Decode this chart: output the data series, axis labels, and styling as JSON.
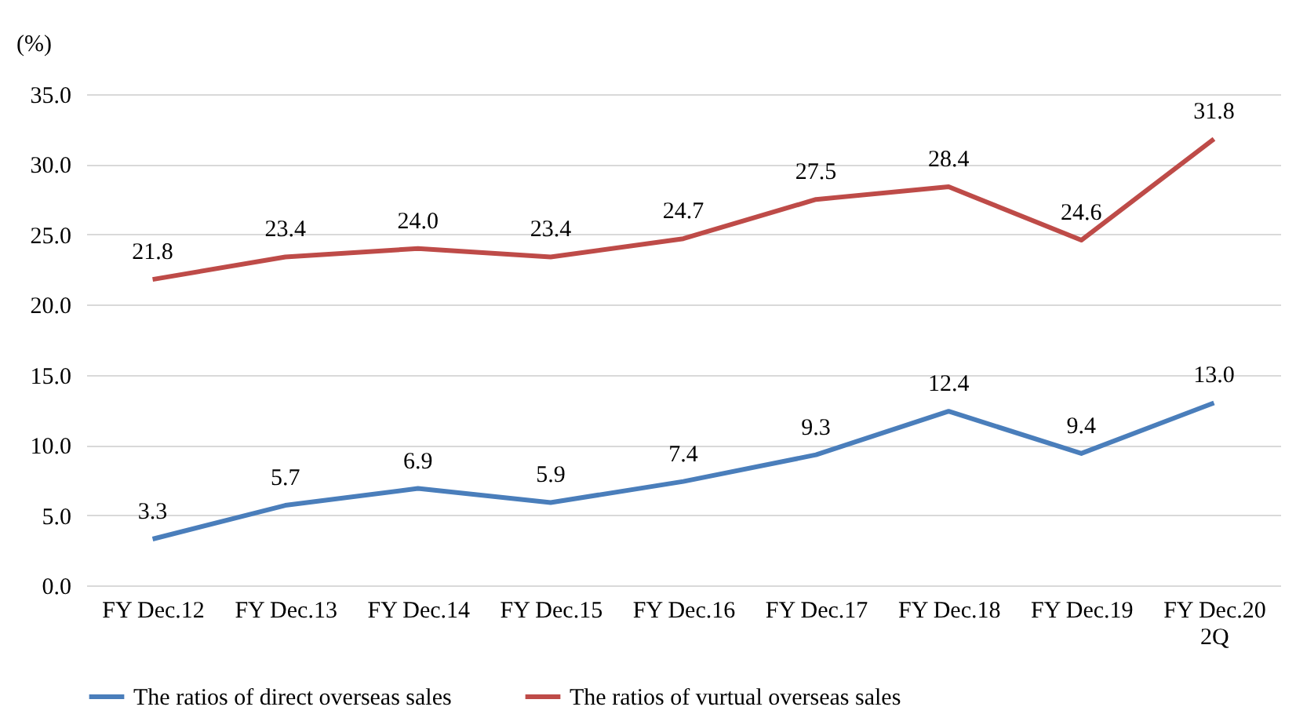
{
  "chart_data": {
    "type": "line",
    "ylabel": "(%)",
    "categories": [
      "FY Dec.12",
      "FY Dec.13",
      "FY Dec.14",
      "FY Dec.15",
      "FY Dec.16",
      "FY Dec.17",
      "FY Dec.18",
      "FY Dec.19",
      "FY Dec.20\n2Q"
    ],
    "series": [
      {
        "name": "The ratios of direct overseas sales",
        "color": "#4a7ebb",
        "values": [
          3.3,
          5.7,
          6.9,
          5.9,
          7.4,
          9.3,
          12.4,
          9.4,
          13.0
        ],
        "value_labels": [
          "3.3",
          "5.7",
          "6.9",
          "5.9",
          "7.4",
          "9.3",
          "12.4",
          "9.4",
          "13.0"
        ]
      },
      {
        "name": "The ratios of vurtual overseas sales",
        "color": "#be4b48",
        "values": [
          21.8,
          23.4,
          24.0,
          23.4,
          24.7,
          27.5,
          28.4,
          24.6,
          31.8
        ],
        "value_labels": [
          "21.8",
          "23.4",
          "24.0",
          "23.4",
          "24.7",
          "27.5",
          "28.4",
          "24.6",
          "31.8"
        ]
      }
    ],
    "ylim": [
      0,
      35
    ],
    "yticks": [
      {
        "value": 0,
        "label": "0.0"
      },
      {
        "value": 5,
        "label": "5.0"
      },
      {
        "value": 10,
        "label": "10.0"
      },
      {
        "value": 15,
        "label": "15.0"
      },
      {
        "value": 20,
        "label": "20.0"
      },
      {
        "value": 25,
        "label": "25.0"
      },
      {
        "value": 30,
        "label": "30.0"
      },
      {
        "value": 35,
        "label": "35.0"
      }
    ],
    "grid": "y",
    "legend": "bottom",
    "marker": "none",
    "line_style": "solid"
  }
}
